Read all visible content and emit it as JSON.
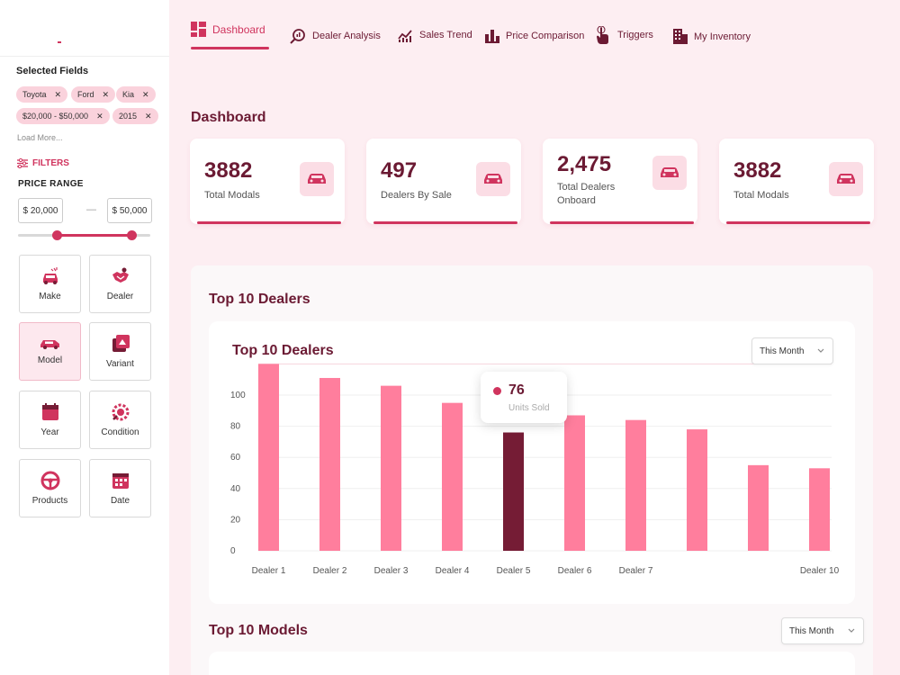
{
  "sidebar": {
    "selected_fields_title": "Selected Fields",
    "chips": [
      {
        "label": "Toyota"
      },
      {
        "label": "Ford"
      },
      {
        "label": "Kia"
      },
      {
        "label": "$20,000 - $50,000"
      },
      {
        "label": "2015"
      }
    ],
    "load_more": "Load More...",
    "filters_label": "FILTERS",
    "price_range_label": "PRICE RANGE",
    "price_min": "$ 20,000",
    "price_max": "$ 50,000",
    "price_separator": "—",
    "categories": [
      {
        "label": "Make",
        "icon": "car-make-icon"
      },
      {
        "label": "Dealer",
        "icon": "dealer-handshake-icon"
      },
      {
        "label": "Model",
        "icon": "car-model-icon"
      },
      {
        "label": "Variant",
        "icon": "variant-icon"
      },
      {
        "label": "Year",
        "icon": "calendar-year-icon"
      },
      {
        "label": "Condition",
        "icon": "wrench-gear-icon"
      },
      {
        "label": "Products",
        "icon": "steering-wheel-icon"
      },
      {
        "label": "Date",
        "icon": "calendar-date-icon"
      }
    ],
    "active_category": "Model"
  },
  "nav": {
    "items": [
      {
        "label": "Dashboard",
        "icon": "dashboard-grid-icon",
        "active": true
      },
      {
        "label": "Dealer Analysis",
        "icon": "search-analysis-icon"
      },
      {
        "label": "Sales Trend",
        "icon": "trend-chart-icon"
      },
      {
        "label": "Price Comparison",
        "icon": "price-bars-icon"
      },
      {
        "label": "Triggers",
        "icon": "hand-pointer-icon"
      },
      {
        "label": "My Inventory",
        "icon": "building-inventory-icon"
      }
    ]
  },
  "page_title": "Dashboard",
  "stats": [
    {
      "value": "3882",
      "label": "Total Modals"
    },
    {
      "value": "497",
      "label": "Dealers By Sale"
    },
    {
      "value": "2,475",
      "label": "Total Dealers Onboard"
    },
    {
      "value": "3882",
      "label": "Total Modals"
    }
  ],
  "section_title": "Top 10 Dealers",
  "chart_card_title": "Top 10 Dealers",
  "chart_dropdown": "This Month",
  "tooltip": {
    "value": "76",
    "label": "Units Sold"
  },
  "section2_title": "Top 10 Models",
  "section2_dropdown": "This Month",
  "colors": {
    "accent": "#d0345e",
    "bar": "#ff7e9d",
    "bar_highlight": "#751c35",
    "title": "#6b1a33"
  },
  "chart_data": {
    "type": "bar",
    "categories": [
      "Dealer 1",
      "Dealer 2",
      "Dealer 3",
      "Dealer 4",
      "Dealer 5",
      "Dealer 6",
      "Dealer 7",
      "",
      "",
      "Dealer 10"
    ],
    "values": [
      120,
      111,
      106,
      95,
      76,
      87,
      84,
      78,
      55,
      53
    ],
    "highlight_index": 4,
    "yticks": [
      0,
      20,
      40,
      60,
      80,
      100
    ],
    "ylim": [
      0,
      120
    ],
    "grid": true,
    "title": "Top 10 Dealers",
    "xlabel": "",
    "ylabel": ""
  }
}
